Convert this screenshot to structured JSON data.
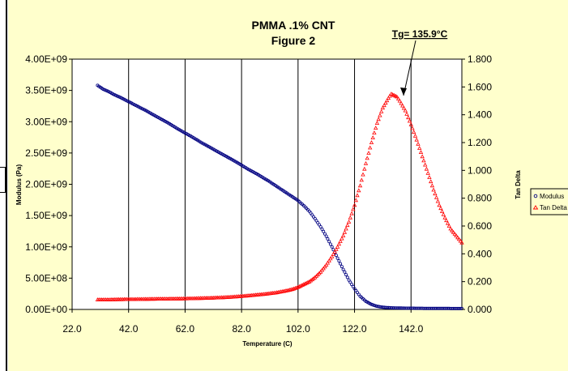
{
  "chart_data": {
    "type": "scatter",
    "title": "PMMA .1% CNT",
    "subtitle": "Figure 2",
    "xlabel": "Temperature (C)",
    "ylabel_left": "Modulus (Pa)",
    "ylabel_right": "Tan Delta",
    "x_ticks": [
      "22.0",
      "42.0",
      "62.0",
      "82.0",
      "102.0",
      "122.0",
      "142.0"
    ],
    "y_left_ticks": [
      "0.00E+00",
      "5.00E+08",
      "1.00E+09",
      "1.50E+09",
      "2.00E+09",
      "2.50E+09",
      "3.00E+09",
      "3.50E+09",
      "4.00E+09"
    ],
    "y_right_ticks": [
      "0.000",
      "0.200",
      "0.400",
      "0.600",
      "0.800",
      "1.000",
      "1.200",
      "1.400",
      "1.600",
      "1.800"
    ],
    "xlim": [
      22,
      160
    ],
    "ylim_left": [
      0,
      4000000000
    ],
    "ylim_right": [
      0,
      1.8
    ],
    "grid": "vertical",
    "legend": "right",
    "annotation": {
      "text": "Tg= 135.9°C",
      "x": 135.9,
      "y_right": 1.56
    },
    "series": [
      {
        "name": "Modulus",
        "axis": "left",
        "color": "#000080",
        "marker": "circle",
        "x": [
          31,
          33,
          35,
          37,
          39,
          42,
          45,
          48,
          52,
          56,
          60,
          64,
          68,
          72,
          76,
          80,
          84,
          88,
          92,
          96,
          100,
          102,
          104,
          106,
          108,
          110,
          112,
          114,
          116,
          118,
          120,
          122,
          124,
          126,
          128,
          130,
          132,
          134,
          136,
          140,
          145,
          150,
          155,
          160
        ],
        "y": [
          3580000000.0,
          3520000000.0,
          3480000000.0,
          3430000000.0,
          3390000000.0,
          3320000000.0,
          3250000000.0,
          3180000000.0,
          3080000000.0,
          2980000000.0,
          2870000000.0,
          2770000000.0,
          2660000000.0,
          2560000000.0,
          2460000000.0,
          2360000000.0,
          2250000000.0,
          2150000000.0,
          2040000000.0,
          1920000000.0,
          1800000000.0,
          1740000000.0,
          1660000000.0,
          1570000000.0,
          1450000000.0,
          1320000000.0,
          1170000000.0,
          1000000000.0,
          820000000.0,
          640000000.0,
          470000000.0,
          330000000.0,
          210000000.0,
          130000000.0,
          80000000.0,
          50000000.0,
          35000000.0,
          28000000.0,
          24000000.0,
          20000000.0,
          18000000.0,
          16000000.0,
          15000000.0,
          14000000.0
        ]
      },
      {
        "name": "Tan Delta",
        "axis": "right",
        "color": "#ff0000",
        "marker": "triangle",
        "x": [
          31,
          34,
          38,
          42,
          46,
          50,
          54,
          58,
          62,
          66,
          70,
          74,
          78,
          82,
          86,
          90,
          94,
          98,
          100,
          102,
          104,
          106,
          108,
          110,
          112,
          114,
          116,
          118,
          120,
          122,
          124,
          126,
          128,
          130,
          132,
          134,
          135,
          136,
          137,
          138,
          140,
          142,
          144,
          146,
          148,
          150,
          152,
          154,
          156,
          158,
          160
        ],
        "y": [
          0.07,
          0.07,
          0.072,
          0.073,
          0.074,
          0.075,
          0.076,
          0.077,
          0.078,
          0.08,
          0.082,
          0.085,
          0.089,
          0.095,
          0.102,
          0.11,
          0.12,
          0.135,
          0.145,
          0.16,
          0.18,
          0.2,
          0.23,
          0.27,
          0.32,
          0.38,
          0.45,
          0.53,
          0.63,
          0.75,
          0.89,
          1.05,
          1.2,
          1.34,
          1.45,
          1.52,
          1.55,
          1.54,
          1.53,
          1.5,
          1.43,
          1.33,
          1.22,
          1.1,
          0.98,
          0.86,
          0.75,
          0.66,
          0.58,
          0.53,
          0.48
        ]
      }
    ]
  }
}
